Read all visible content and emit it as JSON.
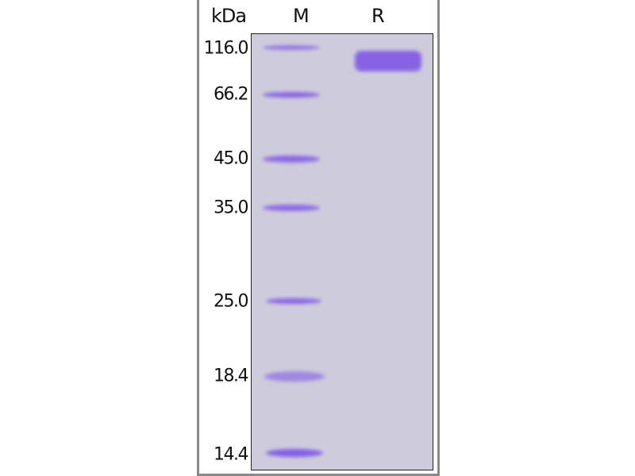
{
  "header": {
    "unit_label": "kDa",
    "lanes": [
      "M",
      "R"
    ]
  },
  "marker_labels": [
    "116.0",
    "66.2",
    "45.0",
    "35.0",
    "25.0",
    "18.4",
    "14.4"
  ],
  "colors": {
    "gel_background": "#cdcbdc",
    "band": "#7b52e6"
  }
}
